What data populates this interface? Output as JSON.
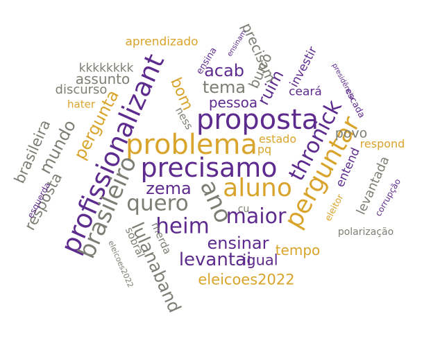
{
  "palette": {
    "gold": "#d9a42b",
    "purple": "#5d2a8e",
    "gray": "#7b7f73"
  },
  "words": [
    {
      "text": "problema",
      "color": "gold"
    },
    {
      "text": "proposta",
      "color": "purple"
    },
    {
      "text": "precisamo",
      "color": "purple"
    },
    {
      "text": "aluno",
      "color": "gold"
    },
    {
      "text": "profissionalizant",
      "color": "purple"
    },
    {
      "text": "brasileiro",
      "color": "gray"
    },
    {
      "text": "perguntar",
      "color": "gold"
    },
    {
      "text": "ano",
      "color": "gray"
    },
    {
      "text": "thronick",
      "color": "purple"
    },
    {
      "text": "quero",
      "color": "gray"
    },
    {
      "text": "heim",
      "color": "purple"
    },
    {
      "text": "maior",
      "color": "purple"
    },
    {
      "text": "lulanaband",
      "color": "gray"
    },
    {
      "text": "mundo",
      "color": "gray"
    },
    {
      "text": "pergunta",
      "color": "gold"
    },
    {
      "text": "levantai",
      "color": "purple"
    },
    {
      "text": "zema",
      "color": "purple"
    },
    {
      "text": "ensinar",
      "color": "purple"
    },
    {
      "text": "tema",
      "color": "gray"
    },
    {
      "text": "acab",
      "color": "purple"
    },
    {
      "text": "bom",
      "color": "gold"
    },
    {
      "text": "ruim",
      "color": "purple"
    },
    {
      "text": "eleicoes2022",
      "color": "gold"
    },
    {
      "text": "tempo",
      "color": "gold"
    },
    {
      "text": "igual",
      "color": "purple"
    },
    {
      "text": "brasileira",
      "color": "gray"
    },
    {
      "text": "resposta",
      "color": "gray"
    },
    {
      "text": "assunto",
      "color": "gray"
    },
    {
      "text": "discurso",
      "color": "gray"
    },
    {
      "text": "kkkkkkkk",
      "color": "gray"
    },
    {
      "text": "aprendizado",
      "color": "gold"
    },
    {
      "text": "precisam",
      "color": "gray"
    },
    {
      "text": "burro",
      "color": "gray"
    },
    {
      "text": "pessoa",
      "color": "purple"
    },
    {
      "text": "ceará",
      "color": "purple"
    },
    {
      "text": "investir",
      "color": "purple"
    },
    {
      "text": "povo",
      "color": "gray"
    },
    {
      "text": "levantada",
      "color": "gray"
    },
    {
      "text": "entend",
      "color": "purple"
    },
    {
      "text": "respond",
      "color": "gold"
    },
    {
      "text": "estado",
      "color": "gold"
    },
    {
      "text": "pq",
      "color": "gold"
    },
    {
      "text": "hater",
      "color": "gold"
    },
    {
      "text": "ness",
      "color": "gray"
    },
    {
      "text": "merda",
      "color": "gray"
    },
    {
      "text": "sobral",
      "color": "gray"
    },
    {
      "text": "cu",
      "color": "gray"
    },
    {
      "text": "escada",
      "color": "purple"
    },
    {
      "text": "eleitor",
      "color": "gold"
    },
    {
      "text": "polarização",
      "color": "gray"
    },
    {
      "text": "corrupção",
      "color": "purple"
    },
    {
      "text": "esquerda",
      "color": "purple"
    },
    {
      "text": "ensina",
      "color": "purple"
    },
    {
      "text": "ensinam",
      "color": "purple"
    },
    {
      "text": "presidência",
      "color": "purple"
    },
    {
      "text": "eleicoes2022",
      "color": "gray"
    }
  ]
}
